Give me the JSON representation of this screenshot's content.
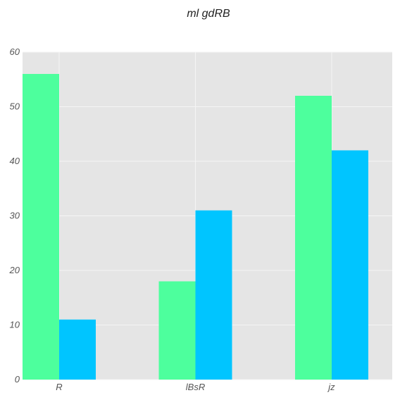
{
  "chart_data": {
    "type": "bar",
    "title": "ml gdRB",
    "categories": [
      "R",
      "lBsR",
      "jz"
    ],
    "series": [
      {
        "values": [
          56,
          18,
          52
        ],
        "color": "#4dff9d"
      },
      {
        "values": [
          11,
          31,
          42
        ],
        "color": "#00c5ff"
      }
    ],
    "xlabel": "",
    "ylabel": "",
    "ylim": [
      0,
      60
    ],
    "yticks": [
      0,
      10,
      20,
      30,
      40,
      50,
      60
    ],
    "grid": true,
    "background": "#e5e5e5",
    "grid_color": "#f5f5f5"
  }
}
